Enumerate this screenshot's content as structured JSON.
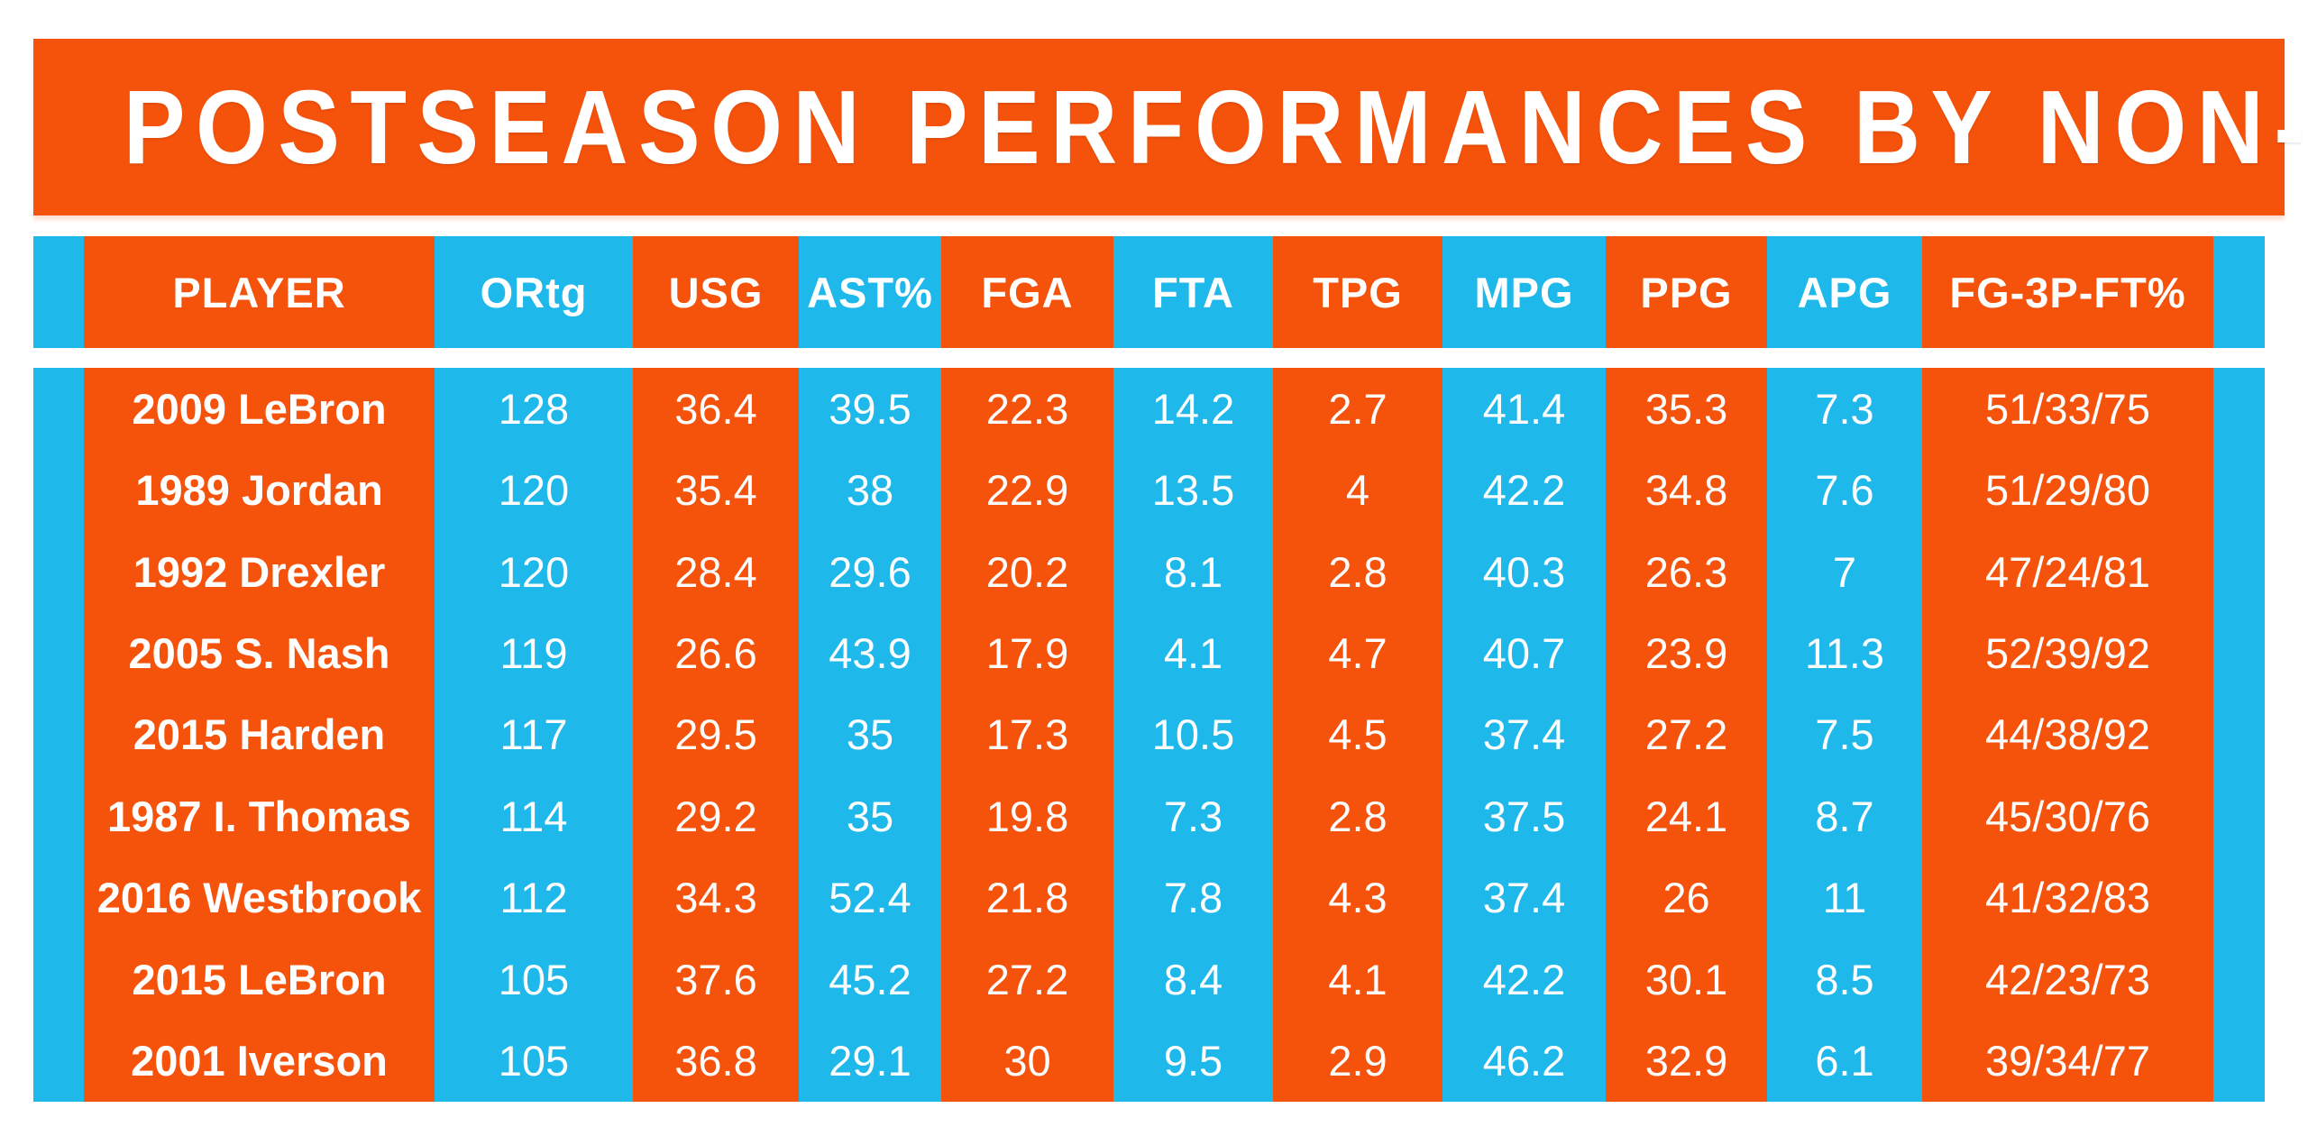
{
  "title": "POSTSEASON PERFORMANCES BY NON-CHAMPIONS",
  "colors": {
    "orange": "#F5520B",
    "cyan": "#1EB8EB",
    "text": "#FFFFFF",
    "background": "#FFFFFF"
  },
  "chart_data": {
    "type": "table",
    "title": "POSTSEASON PERFORMANCES BY NON-CHAMPIONS",
    "columns": [
      "PLAYER",
      "ORtg",
      "USG",
      "AST%",
      "FGA",
      "FTA",
      "TPG",
      "MPG",
      "PPG",
      "APG",
      "FG-3P-FT%"
    ],
    "rows": [
      [
        "2009 LeBron",
        "128",
        "36.4",
        "39.5",
        "22.3",
        "14.2",
        "2.7",
        "41.4",
        "35.3",
        "7.3",
        "51/33/75"
      ],
      [
        "1989 Jordan",
        "120",
        "35.4",
        "38",
        "22.9",
        "13.5",
        "4",
        "42.2",
        "34.8",
        "7.6",
        "51/29/80"
      ],
      [
        "1992 Drexler",
        "120",
        "28.4",
        "29.6",
        "20.2",
        "8.1",
        "2.8",
        "40.3",
        "26.3",
        "7",
        "47/24/81"
      ],
      [
        "2005 S. Nash",
        "119",
        "26.6",
        "43.9",
        "17.9",
        "4.1",
        "4.7",
        "40.7",
        "23.9",
        "11.3",
        "52/39/92"
      ],
      [
        "2015 Harden",
        "117",
        "29.5",
        "35",
        "17.3",
        "10.5",
        "4.5",
        "37.4",
        "27.2",
        "7.5",
        "44/38/92"
      ],
      [
        "1987 I. Thomas",
        "114",
        "29.2",
        "35",
        "19.8",
        "7.3",
        "2.8",
        "37.5",
        "24.1",
        "8.7",
        "45/30/76"
      ],
      [
        "2016 Westbrook",
        "112",
        "34.3",
        "52.4",
        "21.8",
        "7.8",
        "4.3",
        "37.4",
        "26",
        "11",
        "41/32/83"
      ],
      [
        "2015 LeBron",
        "105",
        "37.6",
        "45.2",
        "27.2",
        "8.4",
        "4.1",
        "42.2",
        "30.1",
        "8.5",
        "42/23/73"
      ],
      [
        "2001 Iverson",
        "105",
        "36.8",
        "29.1",
        "30",
        "9.5",
        "2.9",
        "46.2",
        "32.9",
        "6.1",
        "39/34/77"
      ]
    ]
  }
}
